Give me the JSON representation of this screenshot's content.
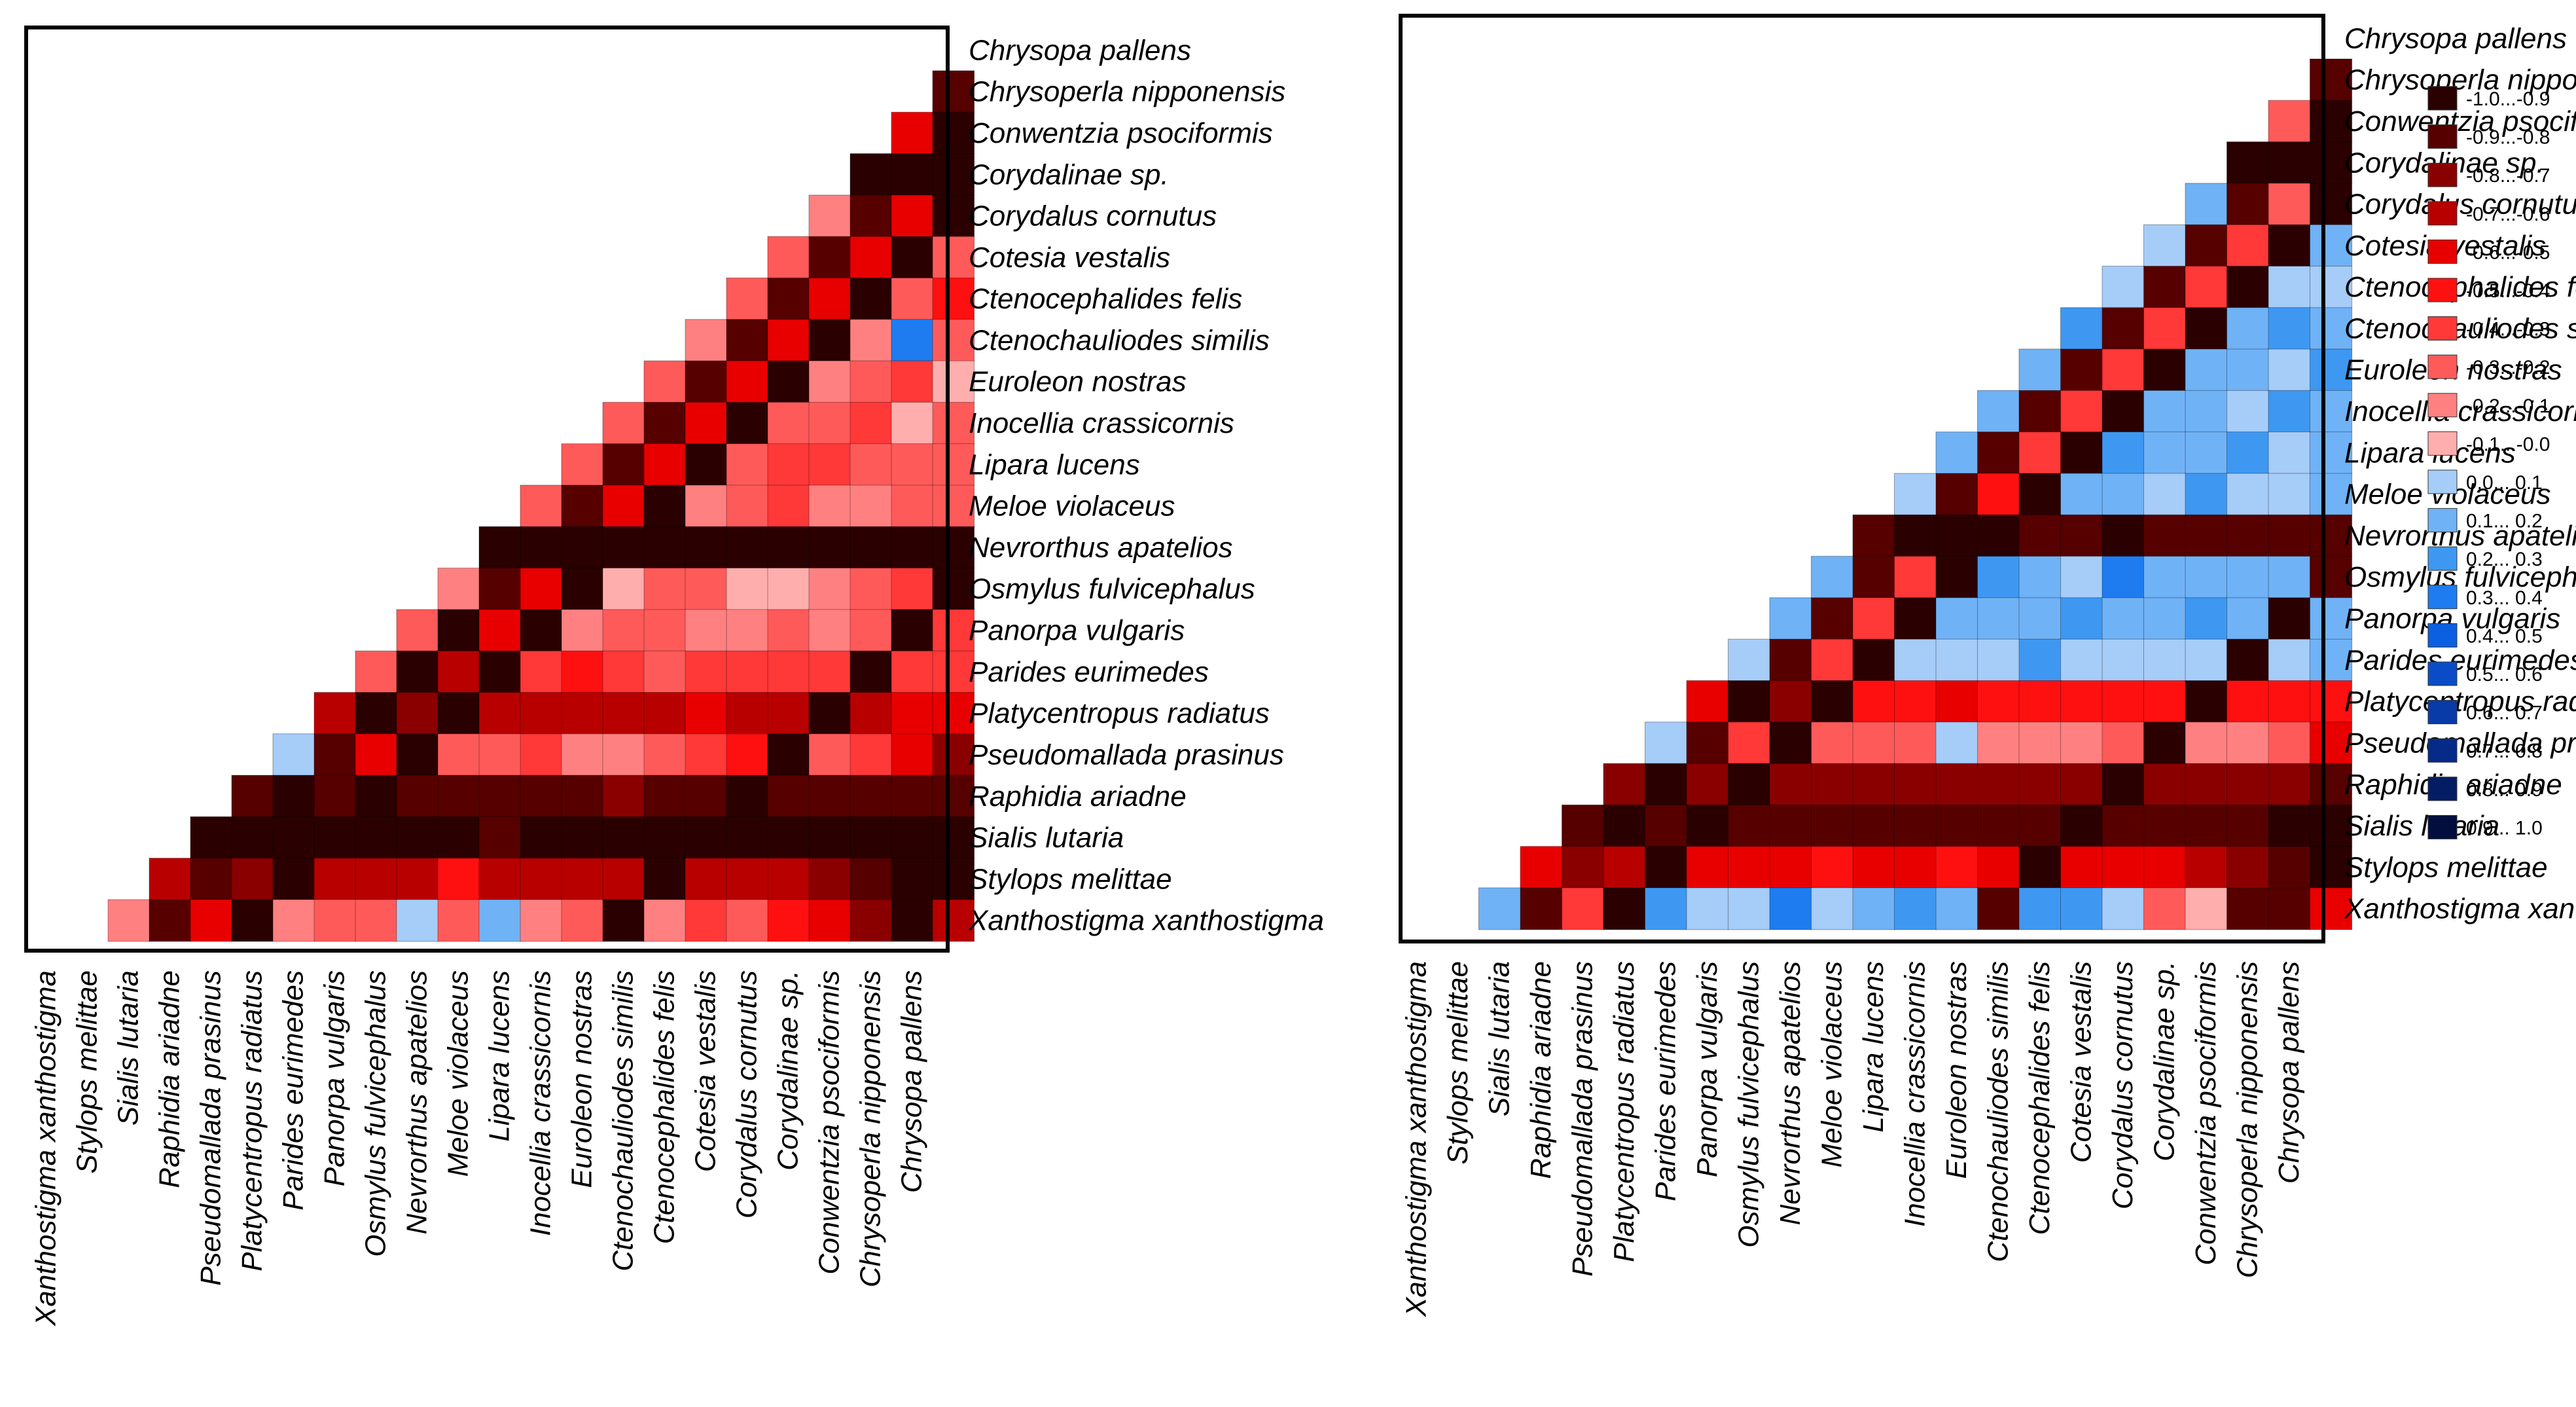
{
  "chart_data": [
    {
      "type": "heatmap",
      "title": "",
      "panel": "left",
      "shape": "lower-left triangle (row i from top shows i+1 cells, diagonal excluded)",
      "species": [
        "Chrysopa pallens",
        "Chrysoperla nipponensis",
        "Conwentzia psociformis",
        "Corydalinae sp.",
        "Corydalus cornutus",
        "Cotesia vestalis",
        "Ctenocephalides felis",
        "Ctenochauliodes similis",
        "Euroleon nostras",
        "Inocellia crassicornis",
        "Lipara lucens",
        "Meloe violaceus",
        "Nevrorthus apatelios",
        "Osmylus fulvicephalus",
        "Panorpa vulgaris",
        "Parides eurimedes",
        "Platycentropus radiatus",
        "Pseudomallada prasinus",
        "Raphidia ariadne",
        "Sialis lutaria",
        "Stylops melittae",
        "Xanthostigma xanthostigma"
      ],
      "rows": [
        [
          -0.85
        ],
        [
          -0.55,
          -0.95
        ],
        [
          -0.95,
          -0.95,
          -0.95
        ],
        [
          -0.15,
          -0.85,
          -0.55,
          -0.95
        ],
        [
          -0.25,
          -0.85,
          -0.55,
          -0.95,
          -0.25
        ],
        [
          -0.25,
          -0.85,
          -0.55,
          -0.95,
          -0.25,
          -0.45
        ],
        [
          -0.15,
          -0.85,
          -0.55,
          -0.95,
          -0.15,
          0.35,
          -0.25
        ],
        [
          -0.25,
          -0.85,
          -0.55,
          -0.95,
          -0.15,
          -0.25,
          -0.35,
          -0.05
        ],
        [
          -0.25,
          -0.85,
          -0.55,
          -0.95,
          -0.25,
          -0.25,
          -0.35,
          -0.05,
          -0.25
        ],
        [
          -0.25,
          -0.85,
          -0.55,
          -0.95,
          -0.25,
          -0.35,
          -0.35,
          -0.25,
          -0.25,
          -0.25
        ],
        [
          -0.25,
          -0.85,
          -0.55,
          -0.95,
          -0.15,
          -0.25,
          -0.35,
          -0.15,
          -0.15,
          -0.25,
          -0.25
        ],
        [
          -0.95,
          -0.95,
          -0.95,
          -0.95,
          -0.95,
          -0.95,
          -0.95,
          -0.95,
          -0.95,
          -0.95,
          -0.95,
          -0.95
        ],
        [
          -0.15,
          -0.85,
          -0.55,
          -0.95,
          -0.05,
          -0.25,
          -0.25,
          -0.05,
          -0.05,
          -0.15,
          -0.25,
          -0.35,
          -0.95
        ],
        [
          -0.25,
          -0.95,
          -0.55,
          -0.95,
          -0.15,
          -0.25,
          -0.25,
          -0.15,
          -0.15,
          -0.25,
          -0.15,
          -0.25,
          -0.95,
          -0.35
        ],
        [
          -0.25,
          -0.95,
          -0.65,
          -0.95,
          -0.35,
          -0.45,
          -0.35,
          -0.25,
          -0.35,
          -0.35,
          -0.35,
          -0.35,
          -0.95,
          -0.35,
          -0.35
        ],
        [
          -0.65,
          -0.95,
          -0.75,
          -0.95,
          -0.65,
          -0.65,
          -0.65,
          -0.65,
          -0.65,
          -0.55,
          -0.65,
          -0.65,
          -0.95,
          -0.65,
          -0.55,
          -0.55
        ],
        [
          0.05,
          -0.85,
          -0.55,
          -0.95,
          -0.25,
          -0.25,
          -0.35,
          -0.15,
          -0.15,
          -0.25,
          -0.35,
          -0.45,
          -0.95,
          -0.25,
          -0.35,
          -0.55,
          -0.75
        ],
        [
          -0.85,
          -0.95,
          -0.85,
          -0.95,
          -0.85,
          -0.85,
          -0.85,
          -0.85,
          -0.85,
          -0.75,
          -0.85,
          -0.85,
          -0.95,
          -0.85,
          -0.85,
          -0.85,
          -0.85,
          -0.85
        ],
        [
          -0.95,
          -0.95,
          -0.95,
          -0.95,
          -0.95,
          -0.95,
          -0.95,
          -0.85,
          -0.95,
          -0.95,
          -0.95,
          -0.95,
          -0.95,
          -0.95,
          -0.95,
          -0.95,
          -0.95,
          -0.95,
          -0.95
        ],
        [
          -0.65,
          -0.85,
          -0.75,
          -0.95,
          -0.65,
          -0.65,
          -0.65,
          -0.45,
          -0.65,
          -0.65,
          -0.65,
          -0.65,
          -0.95,
          -0.65,
          -0.65,
          -0.65,
          -0.75,
          -0.85,
          -0.95,
          -0.95
        ],
        [
          -0.15,
          -0.85,
          -0.55,
          -0.95,
          -0.15,
          -0.25,
          -0.25,
          0.05,
          -0.25,
          0.15,
          -0.15,
          -0.25,
          -0.95,
          -0.15,
          -0.35,
          -0.25,
          -0.45,
          -0.55,
          -0.75,
          -0.95,
          -0.65
        ]
      ]
    },
    {
      "type": "heatmap",
      "title": "",
      "panel": "right",
      "shape": "lower-left triangle (row i from top shows i+1 cells, diagonal excluded)",
      "species": [
        "Chrysopa pallens",
        "Chrysoperla nipponensis",
        "Conwentzia psociformis",
        "Corydalinae sp.",
        "Corydalus cornutus",
        "Cotesia vestalis",
        "Ctenocephalides felis",
        "Ctenochauliodes similis",
        "Euroleon nostras",
        "Inocellia crassicornis",
        "Lipara lucens",
        "Meloe violaceus",
        "Nevrorthus apatelios",
        "Osmylus fulvicephalus",
        "Panorpa vulgaris",
        "Parides eurimedes",
        "Platycentropus radiatus",
        "Pseudomallada prasinus",
        "Raphidia ariadne",
        "Sialis lutaria",
        "Stylops melittae",
        "Xanthostigma xanthostigma"
      ],
      "rows": [
        [
          -0.85
        ],
        [
          -0.25,
          -0.95
        ],
        [
          -0.95,
          -0.95,
          -0.95
        ],
        [
          0.15,
          -0.85,
          -0.25,
          -0.95
        ],
        [
          0.05,
          -0.85,
          -0.35,
          -0.95,
          0.15
        ],
        [
          0.05,
          -0.85,
          -0.35,
          -0.95,
          0.05,
          0.05
        ],
        [
          0.25,
          -0.85,
          -0.35,
          -0.95,
          0.15,
          0.25,
          0.15
        ],
        [
          0.15,
          -0.85,
          -0.35,
          -0.95,
          0.15,
          0.15,
          0.05,
          0.25
        ],
        [
          0.15,
          -0.85,
          -0.35,
          -0.95,
          0.15,
          0.15,
          0.05,
          0.25,
          0.15
        ],
        [
          0.15,
          -0.85,
          -0.35,
          -0.95,
          0.25,
          0.15,
          0.15,
          0.25,
          0.05,
          0.15
        ],
        [
          0.05,
          -0.85,
          -0.45,
          -0.95,
          0.15,
          0.15,
          0.05,
          0.25,
          0.05,
          0.05,
          0.15
        ],
        [
          -0.85,
          -0.95,
          -0.95,
          -0.95,
          -0.85,
          -0.85,
          -0.95,
          -0.85,
          -0.85,
          -0.85,
          -0.85,
          -0.85
        ],
        [
          0.15,
          -0.85,
          -0.35,
          -0.95,
          0.25,
          0.15,
          0.05,
          0.35,
          0.15,
          0.15,
          0.15,
          0.15,
          -0.85
        ],
        [
          0.15,
          -0.85,
          -0.35,
          -0.95,
          0.15,
          0.15,
          0.15,
          0.25,
          0.15,
          0.15,
          0.25,
          0.15,
          -0.95,
          0.15
        ],
        [
          0.05,
          -0.85,
          -0.35,
          -0.95,
          0.05,
          0.05,
          0.05,
          0.25,
          0.05,
          0.05,
          0.05,
          0.05,
          -0.95,
          0.05,
          0.15
        ],
        [
          -0.55,
          -0.95,
          -0.75,
          -0.95,
          -0.45,
          -0.45,
          -0.55,
          -0.45,
          -0.45,
          -0.45,
          -0.45,
          -0.45,
          -0.95,
          -0.45,
          -0.45,
          -0.45
        ],
        [
          0.05,
          -0.85,
          -0.35,
          -0.95,
          -0.25,
          -0.25,
          -0.25,
          0.05,
          -0.15,
          -0.15,
          -0.15,
          -0.25,
          -0.95,
          -0.15,
          -0.15,
          -0.25,
          -0.55
        ],
        [
          -0.75,
          -0.95,
          -0.75,
          -0.95,
          -0.75,
          -0.75,
          -0.75,
          -0.75,
          -0.75,
          -0.75,
          -0.75,
          -0.75,
          -0.95,
          -0.75,
          -0.75,
          -0.75,
          -0.75,
          -0.85
        ],
        [
          -0.85,
          -0.95,
          -0.85,
          -0.95,
          -0.85,
          -0.85,
          -0.85,
          -0.85,
          -0.85,
          -0.85,
          -0.85,
          -0.85,
          -0.95,
          -0.85,
          -0.85,
          -0.85,
          -0.85,
          -0.95,
          -0.95
        ],
        [
          -0.55,
          -0.75,
          -0.65,
          -0.95,
          -0.55,
          -0.55,
          -0.55,
          -0.45,
          -0.55,
          -0.55,
          -0.45,
          -0.55,
          -0.95,
          -0.55,
          -0.55,
          -0.55,
          -0.65,
          -0.75,
          -0.85,
          -0.95
        ],
        [
          0.15,
          -0.85,
          -0.35,
          -0.95,
          0.25,
          0.05,
          0.05,
          0.35,
          0.05,
          0.15,
          0.25,
          0.15,
          -0.85,
          0.25,
          0.25,
          0.05,
          -0.25,
          -0.05,
          -0.85,
          -0.85,
          -0.55
        ]
      ]
    }
  ],
  "legend": {
    "title": "",
    "items": [
      {
        "label": "-1.0...-0.9",
        "color": "#2a0000"
      },
      {
        "label": "-0.9...-0.8",
        "color": "#560000"
      },
      {
        "label": "-0.8...-0.7",
        "color": "#8a0000"
      },
      {
        "label": "-0.7...-0.6",
        "color": "#b80000"
      },
      {
        "label": "-0.6...-0.5",
        "color": "#e80000"
      },
      {
        "label": "-0.5...-0.4",
        "color": "#ff1010"
      },
      {
        "label": "-0.4...-0.3",
        "color": "#ff3838"
      },
      {
        "label": "-0.3...-0.2",
        "color": "#ff5a5a"
      },
      {
        "label": "-0.2...-0.1",
        "color": "#ff8080"
      },
      {
        "label": "-0.1...-0.0",
        "color": "#ffaeae"
      },
      {
        "label": "0.0... 0.1",
        "color": "#a6ccf8"
      },
      {
        "label": "0.1... 0.2",
        "color": "#70b2f6"
      },
      {
        "label": "0.2... 0.3",
        "color": "#3e98f2"
      },
      {
        "label": "0.3... 0.4",
        "color": "#1e7cf0"
      },
      {
        "label": "0.4... 0.5",
        "color": "#0a60e0"
      },
      {
        "label": "0.5... 0.6",
        "color": "#0a4cc8"
      },
      {
        "label": "0.6... 0.7",
        "color": "#083aa8"
      },
      {
        "label": "0.7... 0.8",
        "color": "#062a88"
      },
      {
        "label": "0.8... 0.9",
        "color": "#041c64"
      },
      {
        "label": "0.9... 1.0",
        "color": "#020e3e"
      }
    ]
  }
}
